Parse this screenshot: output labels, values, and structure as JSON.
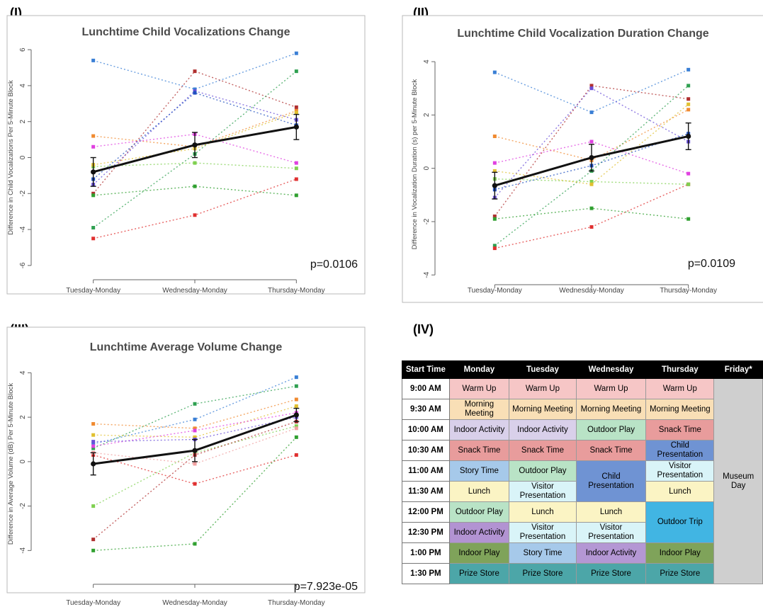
{
  "panels": {
    "p1": "(I)",
    "p2": "(II)",
    "p3": "(III)",
    "p4": "(IV)"
  },
  "chart_data": [
    {
      "type": "line",
      "title": "Lunchtime Child Vocalizations Change",
      "ylabel": "Difference in Child Vocalizations Per 5-Minute Block",
      "categories": [
        "Tuesday-Monday",
        "Wednesday-Monday",
        "Thursday-Monday"
      ],
      "ylim": [
        -6.4,
        6.4
      ],
      "yticks": [
        -6,
        -4,
        -2,
        0,
        2,
        4,
        6
      ],
      "annotation": "p=0.0106",
      "mean": {
        "values": [
          -0.8,
          0.7,
          1.7
        ],
        "err": [
          0.8,
          0.7,
          0.7
        ]
      },
      "series": [
        {
          "color": "#3a7fd5",
          "values": [
            5.4,
            3.8,
            5.8
          ]
        },
        {
          "color": "#b03030",
          "values": [
            -2.0,
            4.8,
            2.8
          ]
        },
        {
          "color": "#f08a30",
          "values": [
            1.2,
            0.6,
            2.6
          ]
        },
        {
          "color": "#e040e0",
          "values": [
            0.6,
            1.3,
            -0.3
          ]
        },
        {
          "color": "#6a4fd8",
          "values": [
            -1.5,
            3.7,
            2.1
          ]
        },
        {
          "color": "#2fa050",
          "values": [
            -3.9,
            0.2,
            4.8
          ]
        },
        {
          "color": "#e03030",
          "values": [
            -4.5,
            -3.2,
            -1.2
          ]
        },
        {
          "color": "#30a030",
          "values": [
            -2.1,
            -1.6,
            -2.1
          ]
        },
        {
          "color": "#7fd050",
          "values": [
            -0.5,
            -0.3,
            -0.6
          ]
        },
        {
          "color": "#e0c030",
          "values": [
            -0.4,
            0.5,
            2.5
          ]
        },
        {
          "color": "#2050c0",
          "values": [
            -1.2,
            3.6,
            1.8
          ]
        }
      ]
    },
    {
      "type": "line",
      "title": "Lunchtime Child Vocalization Duration Change",
      "ylabel": "Difference in Vocalization Duration (s) per 5-Minute Block",
      "categories": [
        "Tuesday-Monday",
        "Wednesday-Monday",
        "Thursday-Monday"
      ],
      "ylim": [
        -4.1,
        4.4
      ],
      "yticks": [
        -4,
        -2,
        0,
        2,
        4
      ],
      "annotation": "p=0.0109",
      "mean": {
        "values": [
          -0.65,
          0.4,
          1.2
        ],
        "err": [
          0.5,
          0.5,
          0.5
        ]
      },
      "series": [
        {
          "color": "#3a7fd5",
          "values": [
            3.6,
            2.1,
            3.7
          ]
        },
        {
          "color": "#f08a30",
          "values": [
            1.2,
            0.3,
            2.2
          ]
        },
        {
          "color": "#e040e0",
          "values": [
            0.2,
            1.0,
            -0.2
          ]
        },
        {
          "color": "#b03030",
          "values": [
            -1.8,
            3.1,
            2.6
          ]
        },
        {
          "color": "#6a4fd8",
          "values": [
            -1.1,
            3.0,
            1.0
          ]
        },
        {
          "color": "#2fa050",
          "values": [
            -2.9,
            -0.1,
            3.1
          ]
        },
        {
          "color": "#e03030",
          "values": [
            -3.0,
            -2.2,
            -0.6
          ]
        },
        {
          "color": "#30a030",
          "values": [
            -1.9,
            -1.5,
            -1.9
          ]
        },
        {
          "color": "#7fd050",
          "values": [
            -0.4,
            -0.5,
            -0.6
          ]
        },
        {
          "color": "#e0c030",
          "values": [
            -0.1,
            -0.6,
            2.4
          ]
        },
        {
          "color": "#2050c0",
          "values": [
            -0.8,
            0.1,
            1.3
          ]
        }
      ]
    },
    {
      "type": "line",
      "title": "Lunchtime Average Volume Change",
      "ylabel": "Difference in Average Volume (dB) Per 5-Minute Block",
      "categories": [
        "Tuesday-Monday",
        "Wednesday-Monday",
        "Thursday-Monday"
      ],
      "ylim": [
        -5.2,
        5.0
      ],
      "yticks": [
        -4,
        -2,
        0,
        2,
        4
      ],
      "annotation": "p=7.923e-05",
      "mean": {
        "values": [
          -0.1,
          0.5,
          2.1
        ],
        "err": [
          0.5,
          0.5,
          0.3
        ]
      },
      "series": [
        {
          "color": "#3a7fd5",
          "values": [
            0.8,
            1.9,
            3.8
          ]
        },
        {
          "color": "#2fa050",
          "values": [
            0.6,
            2.6,
            3.4
          ]
        },
        {
          "color": "#f08a30",
          "values": [
            1.7,
            1.5,
            2.8
          ]
        },
        {
          "color": "#e0c030",
          "values": [
            1.2,
            1.1,
            2.5
          ]
        },
        {
          "color": "#e040e0",
          "values": [
            0.7,
            1.4,
            2.2
          ]
        },
        {
          "color": "#6a4fd8",
          "values": [
            0.9,
            1.0,
            2.0
          ]
        },
        {
          "color": "#e03030",
          "values": [
            0.3,
            -1.0,
            0.3
          ]
        },
        {
          "color": "#7fd050",
          "values": [
            -2.0,
            0.4,
            1.6
          ]
        },
        {
          "color": "#b03030",
          "values": [
            -3.5,
            0.3,
            1.8
          ]
        },
        {
          "color": "#30a030",
          "values": [
            -4.0,
            -3.7,
            1.1
          ]
        },
        {
          "color": "#f0a0a0",
          "values": [
            0.4,
            -0.1,
            1.5
          ]
        }
      ]
    }
  ],
  "schedule": {
    "headers": [
      "Start Time",
      "Monday",
      "Tuesday",
      "Wednesday",
      "Thursday",
      "Friday*"
    ],
    "times": [
      "9:00 AM",
      "9:30 AM",
      "10:00 AM",
      "10:30 AM",
      "11:00 AM",
      "11:30 AM",
      "12:00 PM",
      "12:30 PM",
      "1:00 PM",
      "1:30 PM"
    ],
    "friday": "Museum Day",
    "colors": {
      "warmup": "#f6c6c6",
      "meeting": "#f9dfb6",
      "indoor": "#d9d0ea",
      "outdoor": "#b9e3c6",
      "snack": "#e89c9c",
      "child": "#6f93d3",
      "story": "#a6c9ea",
      "lunch": "#fbf4c4",
      "visitor": "#d9f4f8",
      "trip": "#41b5e3",
      "indoor_purple": "#b293d2",
      "indoor_play": "#7fa35a",
      "indoor_act_purple": "#b497d4",
      "prize": "#4ca6a8"
    },
    "rows": [
      [
        {
          "text": "Warm Up",
          "c": "warmup"
        },
        {
          "text": "Warm Up",
          "c": "warmup"
        },
        {
          "text": "Warm Up",
          "c": "warmup"
        },
        {
          "text": "Warm Up",
          "c": "warmup"
        }
      ],
      [
        {
          "text": "Morning Meeting",
          "c": "meeting"
        },
        {
          "text": "Morning Meeting",
          "c": "meeting"
        },
        {
          "text": "Morning Meeting",
          "c": "meeting"
        },
        {
          "text": "Morning Meeting",
          "c": "meeting"
        }
      ],
      [
        {
          "text": "Indoor Activity",
          "c": "indoor"
        },
        {
          "text": "Indoor Activity",
          "c": "indoor"
        },
        {
          "text": "Outdoor Play",
          "c": "outdoor"
        },
        {
          "text": "Snack Time",
          "c": "snack"
        }
      ],
      [
        {
          "text": "Snack Time",
          "c": "snack"
        },
        {
          "text": "Snack Time",
          "c": "snack"
        },
        {
          "text": "Snack Time",
          "c": "snack"
        },
        {
          "text": "Child Presentation",
          "c": "child"
        }
      ],
      [
        {
          "text": "Story Time",
          "c": "story"
        },
        {
          "text": "Outdoor Play",
          "c": "outdoor"
        },
        {
          "text": "Child Presentation",
          "c": "child",
          "rowspan": 2
        },
        {
          "text": "Visitor Presentation",
          "c": "visitor"
        }
      ],
      [
        {
          "text": "Lunch",
          "c": "lunch"
        },
        {
          "text": "Visitor Presentation",
          "c": "visitor"
        },
        {
          "text": "Lunch",
          "c": "lunch"
        }
      ],
      [
        {
          "text": "Outdoor Play",
          "c": "outdoor"
        },
        {
          "text": "Lunch",
          "c": "lunch"
        },
        {
          "text": "Lunch",
          "c": "lunch"
        },
        {
          "text": "Outdoor Trip",
          "c": "trip",
          "rowspan": 2
        }
      ],
      [
        {
          "text": "Indoor Activity",
          "c": "indoor_purple"
        },
        {
          "text": "Visitor Presentation",
          "c": "visitor"
        },
        {
          "text": "Visitor Presentation",
          "c": "visitor"
        }
      ],
      [
        {
          "text": "Indoor Play",
          "c": "indoor_play"
        },
        {
          "text": "Story Time",
          "c": "story"
        },
        {
          "text": "Indoor Activity",
          "c": "indoor_act_purple"
        },
        {
          "text": "Indoor Play",
          "c": "indoor_play"
        }
      ],
      [
        {
          "text": "Prize Store",
          "c": "prize"
        },
        {
          "text": "Prize Store",
          "c": "prize"
        },
        {
          "text": "Prize Store",
          "c": "prize"
        },
        {
          "text": "Prize Store",
          "c": "prize"
        }
      ]
    ]
  }
}
